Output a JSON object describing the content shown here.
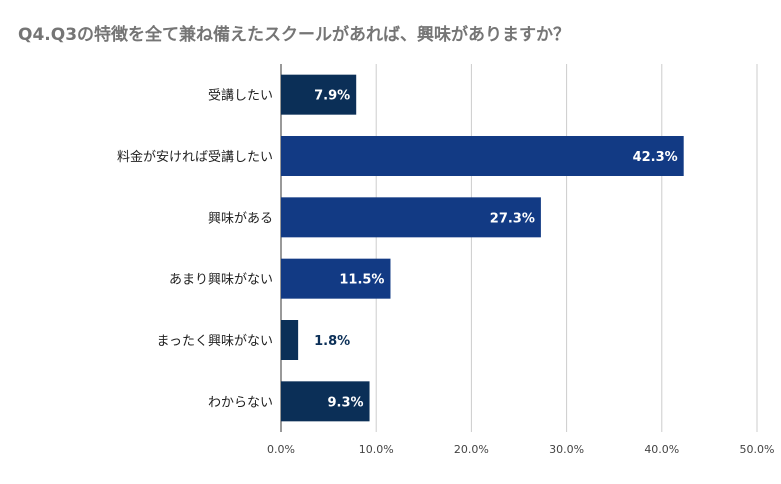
{
  "chart_data": {
    "type": "bar",
    "orientation": "horizontal",
    "title": "Q4.Q3の特徴を全て兼ね備えたスクールがあれば、興味がありますか？",
    "xlabel": "",
    "ylabel": "",
    "categories": [
      "受講したい",
      "料金が安ければ受講したい",
      "興味がある",
      "あまり興味がない",
      "まったく興味がない",
      "わからない"
    ],
    "values": [
      7.9,
      42.3,
      27.3,
      11.5,
      1.8,
      9.3
    ],
    "value_labels": [
      "7.9%",
      "42.3%",
      "27.3%",
      "11.5%",
      "1.8%",
      "9.3%"
    ],
    "xlim": [
      0,
      50
    ],
    "ticks": [
      0,
      10,
      20,
      30,
      40,
      50
    ],
    "tick_labels": [
      "0.0%",
      "10.0%",
      "20.0%",
      "30.0%",
      "40.0%",
      "50.0%"
    ],
    "grid": true,
    "legend": "none",
    "bar_colors": [
      "#0b2f57",
      "#123a84",
      "#123a84",
      "#123a84",
      "#0b2f57",
      "#0b2f57"
    ],
    "label_inside_color": "#ffffff",
    "label_outside_color": "#0b2f57",
    "grid_color": "#cccccc"
  }
}
